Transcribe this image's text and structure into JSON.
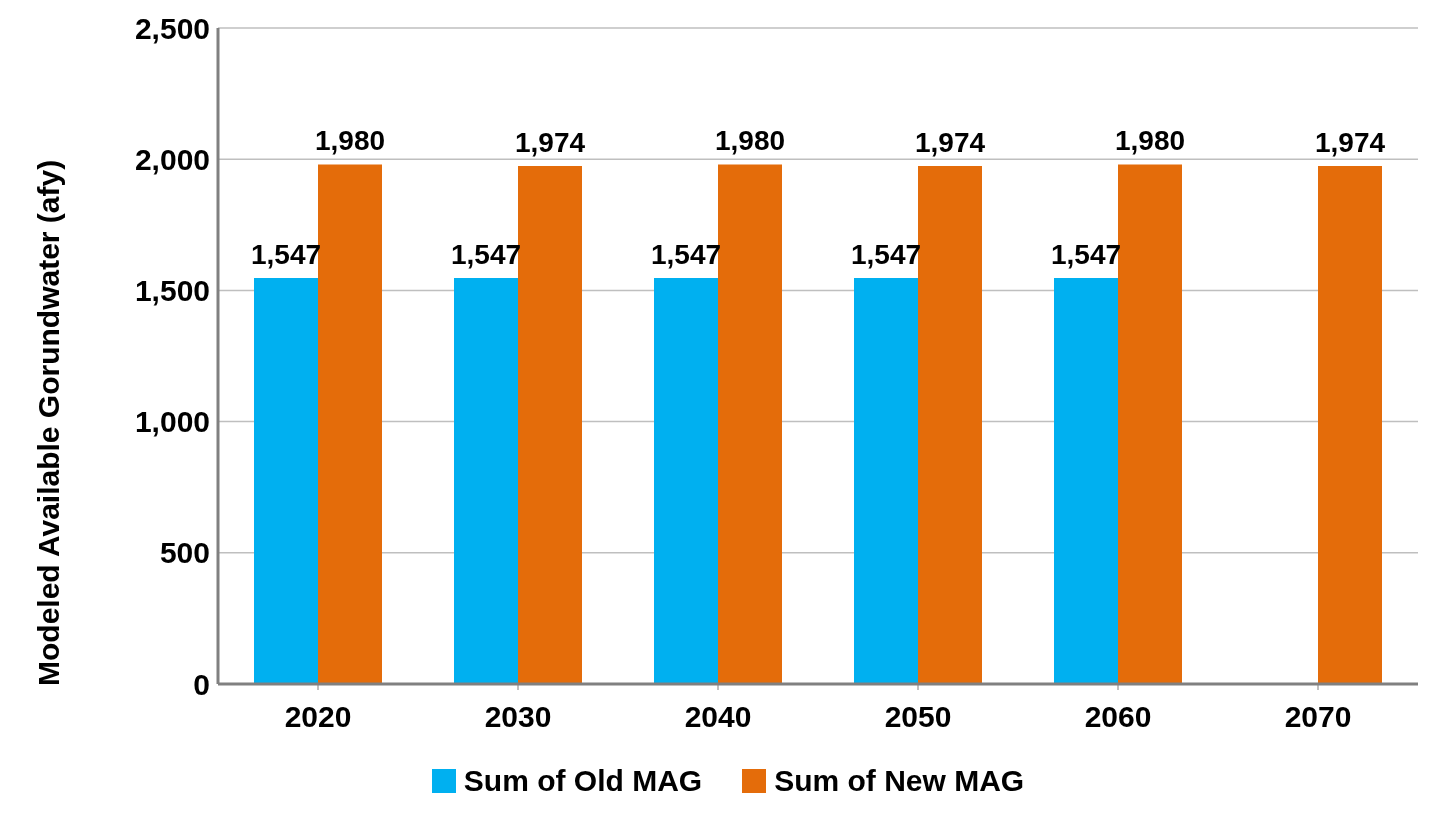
{
  "chart_data": {
    "type": "bar",
    "ylabel": "Modeled Available Gorundwater (afy)",
    "categories": [
      "2020",
      "2030",
      "2040",
      "2050",
      "2060",
      "2070"
    ],
    "series": [
      {
        "name": "Sum of Old MAG",
        "color": "#00b0f0",
        "values": [
          1547,
          1547,
          1547,
          1547,
          1547,
          null
        ],
        "value_labels": [
          "1,547",
          "1,547",
          "1,547",
          "1,547",
          "1,547",
          null
        ]
      },
      {
        "name": "Sum of New MAG",
        "color": "#e46c0a",
        "values": [
          1980,
          1974,
          1980,
          1974,
          1980,
          1974
        ],
        "value_labels": [
          "1,980",
          "1,974",
          "1,980",
          "1,974",
          "1,980",
          "1,974"
        ]
      }
    ],
    "ylim": [
      0,
      2500
    ],
    "yticks": [
      0,
      500,
      {
        "value": 1000,
        "label": "1,000"
      },
      {
        "value": 1500,
        "label": "1,500"
      },
      {
        "value": 2000,
        "label": "2,000"
      },
      {
        "value": 2500,
        "label": "2,500"
      }
    ],
    "grid": "y",
    "legend": "bottom"
  }
}
